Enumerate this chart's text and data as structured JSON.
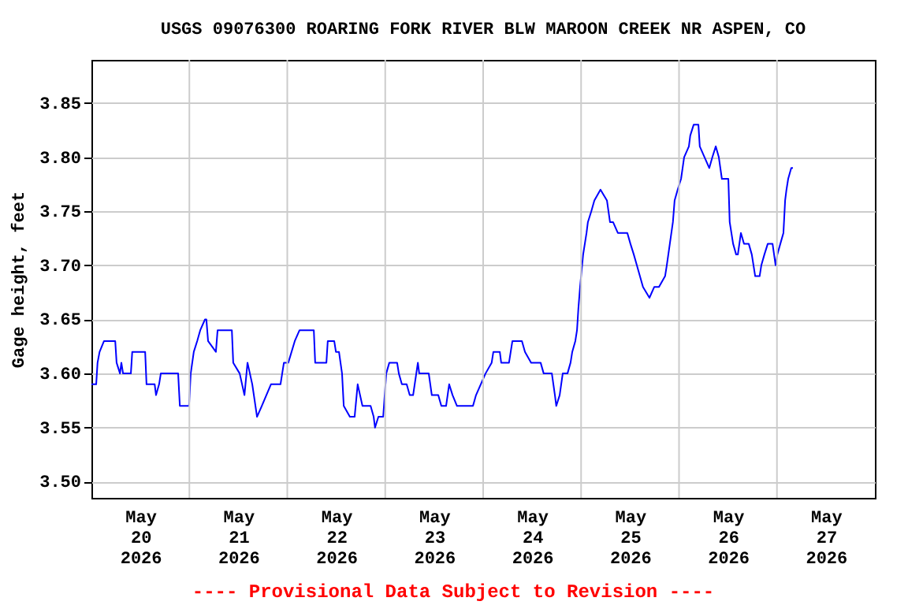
{
  "chart_data": {
    "type": "line",
    "title": "USGS 09076300 ROARING FORK RIVER BLW MAROON CREEK NR ASPEN, CO",
    "ylabel": "Gage height, feet",
    "annotations": [
      "---- Provisional Data Subject to Revision ----"
    ],
    "grid": true,
    "legend": false,
    "marker": "none",
    "line_style": "solid",
    "xlim": [
      "2026-05-20T00:00",
      "2026-05-28T00:00"
    ],
    "xticks": [
      {
        "value": "2026-05-20T12:00",
        "label": "May 20 2026"
      },
      {
        "value": "2026-05-21T00:00",
        "label": null
      },
      {
        "value": "2026-05-21T12:00",
        "label": "May 21 2026"
      },
      {
        "value": "2026-05-22T00:00",
        "label": null
      },
      {
        "value": "2026-05-22T12:00",
        "label": "May 22 2026"
      },
      {
        "value": "2026-05-23T00:00",
        "label": null
      },
      {
        "value": "2026-05-23T12:00",
        "label": "May 23 2026"
      },
      {
        "value": "2026-05-24T00:00",
        "label": null
      },
      {
        "value": "2026-05-24T12:00",
        "label": "May 24 2026"
      },
      {
        "value": "2026-05-25T00:00",
        "label": null
      },
      {
        "value": "2026-05-25T12:00",
        "label": "May 25 2026"
      },
      {
        "value": "2026-05-26T00:00",
        "label": null
      },
      {
        "value": "2026-05-26T12:00",
        "label": "May 26 2026"
      },
      {
        "value": "2026-05-27T00:00",
        "label": null
      },
      {
        "value": "2026-05-27T12:00",
        "label": "May 27 2026"
      }
    ],
    "ylim": [
      3.485,
      3.89
    ],
    "yticks": [
      {
        "value": 3.5,
        "label": "3.50"
      },
      {
        "value": 3.55,
        "label": "3.55"
      },
      {
        "value": 3.6,
        "label": "3.60"
      },
      {
        "value": 3.65,
        "label": "3.65"
      },
      {
        "value": 3.7,
        "label": "3.70"
      },
      {
        "value": 3.75,
        "label": "3.75"
      },
      {
        "value": 3.8,
        "label": "3.80"
      },
      {
        "value": 3.85,
        "label": "3.85"
      }
    ],
    "x": [
      "2026-05-20T00:00",
      "2026-05-20T01:10",
      "2026-05-20T01:30",
      "2026-05-20T02:00",
      "2026-05-20T03:05",
      "2026-05-20T05:50",
      "2026-05-20T06:10",
      "2026-05-20T07:00",
      "2026-05-20T07:20",
      "2026-05-20T07:45",
      "2026-05-20T09:40",
      "2026-05-20T10:00",
      "2026-05-20T13:10",
      "2026-05-20T13:30",
      "2026-05-20T15:30",
      "2026-05-20T15:50",
      "2026-05-20T16:35",
      "2026-05-20T17:00",
      "2026-05-20T21:15",
      "2026-05-20T21:40",
      "2026-05-20T23:55",
      "2026-05-21T00:20",
      "2026-05-21T01:05",
      "2026-05-21T01:55",
      "2026-05-21T02:40",
      "2026-05-21T03:50",
      "2026-05-21T04:10",
      "2026-05-21T04:35",
      "2026-05-21T06:30",
      "2026-05-21T06:55",
      "2026-05-21T10:25",
      "2026-05-21T10:45",
      "2026-05-21T12:20",
      "2026-05-21T13:30",
      "2026-05-21T14:15",
      "2026-05-21T15:25",
      "2026-05-21T16:35",
      "2026-05-21T17:45",
      "2026-05-21T20:00",
      "2026-05-21T22:20",
      "2026-05-21T23:10",
      "2026-05-22T00:15",
      "2026-05-22T01:50",
      "2026-05-22T03:00",
      "2026-05-22T06:30",
      "2026-05-22T06:50",
      "2026-05-22T09:35",
      "2026-05-22T09:55",
      "2026-05-22T11:30",
      "2026-05-22T11:55",
      "2026-05-22T12:40",
      "2026-05-22T13:25",
      "2026-05-22T13:50",
      "2026-05-22T15:20",
      "2026-05-22T16:30",
      "2026-05-22T17:15",
      "2026-05-22T18:25",
      "2026-05-22T20:25",
      "2026-05-22T21:10",
      "2026-05-22T21:30",
      "2026-05-22T22:20",
      "2026-05-22T23:30",
      "2026-05-23T00:15",
      "2026-05-23T01:00",
      "2026-05-23T02:55",
      "2026-05-23T03:20",
      "2026-05-23T04:05",
      "2026-05-23T05:15",
      "2026-05-23T06:00",
      "2026-05-23T06:50",
      "2026-05-23T08:00",
      "2026-05-23T08:20",
      "2026-05-23T10:40",
      "2026-05-23T11:25",
      "2026-05-23T13:00",
      "2026-05-23T13:45",
      "2026-05-23T14:55",
      "2026-05-23T15:40",
      "2026-05-23T16:30",
      "2026-05-23T17:35",
      "2026-05-23T21:30",
      "2026-05-23T22:15",
      "2026-05-23T23:25",
      "2026-05-24T00:35",
      "2026-05-24T02:05",
      "2026-05-24T02:30",
      "2026-05-24T04:05",
      "2026-05-24T04:25",
      "2026-05-24T06:20",
      "2026-05-24T07:10",
      "2026-05-24T09:30",
      "2026-05-24T10:15",
      "2026-05-24T11:45",
      "2026-05-24T14:05",
      "2026-05-24T14:50",
      "2026-05-24T16:50",
      "2026-05-24T17:35",
      "2026-05-24T17:55",
      "2026-05-24T18:45",
      "2026-05-24T19:30",
      "2026-05-24T20:40",
      "2026-05-24T21:25",
      "2026-05-24T21:50",
      "2026-05-24T22:35",
      "2026-05-24T23:00",
      "2026-05-24T23:20",
      "2026-05-24T23:45",
      "2026-05-25T00:30",
      "2026-05-25T01:20",
      "2026-05-25T01:40",
      "2026-05-25T02:30",
      "2026-05-25T03:15",
      "2026-05-25T04:45",
      "2026-05-25T06:20",
      "2026-05-25T07:05",
      "2026-05-25T07:50",
      "2026-05-25T09:00",
      "2026-05-25T11:20",
      "2026-05-25T12:05",
      "2026-05-25T12:55",
      "2026-05-25T13:40",
      "2026-05-25T14:25",
      "2026-05-25T15:10",
      "2026-05-25T16:45",
      "2026-05-25T17:55",
      "2026-05-25T19:05",
      "2026-05-25T20:35",
      "2026-05-25T21:00",
      "2026-05-25T21:45",
      "2026-05-25T22:30",
      "2026-05-25T22:55",
      "2026-05-25T23:40",
      "2026-05-26T00:30",
      "2026-05-26T01:15",
      "2026-05-26T02:25",
      "2026-05-26T02:45",
      "2026-05-26T03:35",
      "2026-05-26T04:45",
      "2026-05-26T05:05",
      "2026-05-26T06:15",
      "2026-05-26T07:25",
      "2026-05-26T08:10",
      "2026-05-26T09:00",
      "2026-05-26T09:45",
      "2026-05-26T10:30",
      "2026-05-26T12:05",
      "2026-05-26T12:25",
      "2026-05-26T13:15",
      "2026-05-26T14:00",
      "2026-05-26T14:25",
      "2026-05-26T15:10",
      "2026-05-26T15:55",
      "2026-05-26T17:05",
      "2026-05-26T17:50",
      "2026-05-26T18:40",
      "2026-05-26T19:45",
      "2026-05-26T20:10",
      "2026-05-26T20:55",
      "2026-05-26T21:45",
      "2026-05-26T22:55",
      "2026-05-26T23:40",
      "2026-05-27T00:05",
      "2026-05-27T00:50",
      "2026-05-27T01:35",
      "2026-05-27T02:00",
      "2026-05-27T02:20",
      "2026-05-27T02:45",
      "2026-05-27T03:30",
      "2026-05-27T03:55"
    ],
    "series": [
      {
        "color": "#0000ff",
        "values": [
          3.59,
          3.59,
          3.61,
          3.62,
          3.63,
          3.63,
          3.61,
          3.6,
          3.61,
          3.6,
          3.6,
          3.62,
          3.62,
          3.59,
          3.59,
          3.58,
          3.59,
          3.6,
          3.6,
          3.57,
          3.57,
          3.6,
          3.62,
          3.63,
          3.64,
          3.65,
          3.65,
          3.63,
          3.62,
          3.64,
          3.64,
          3.61,
          3.6,
          3.58,
          3.61,
          3.59,
          3.56,
          3.57,
          3.59,
          3.59,
          3.61,
          3.61,
          3.63,
          3.64,
          3.64,
          3.61,
          3.61,
          3.63,
          3.63,
          3.62,
          3.62,
          3.6,
          3.57,
          3.56,
          3.56,
          3.59,
          3.57,
          3.57,
          3.56,
          3.55,
          3.56,
          3.56,
          3.6,
          3.61,
          3.61,
          3.6,
          3.59,
          3.59,
          3.58,
          3.58,
          3.61,
          3.6,
          3.6,
          3.58,
          3.58,
          3.57,
          3.57,
          3.59,
          3.58,
          3.57,
          3.57,
          3.58,
          3.59,
          3.6,
          3.61,
          3.62,
          3.62,
          3.61,
          3.61,
          3.63,
          3.63,
          3.62,
          3.61,
          3.61,
          3.6,
          3.6,
          3.58,
          3.57,
          3.58,
          3.6,
          3.6,
          3.61,
          3.62,
          3.63,
          3.64,
          3.66,
          3.68,
          3.71,
          3.73,
          3.74,
          3.75,
          3.76,
          3.77,
          3.76,
          3.74,
          3.74,
          3.73,
          3.73,
          3.72,
          3.71,
          3.7,
          3.69,
          3.68,
          3.67,
          3.68,
          3.68,
          3.69,
          3.7,
          3.72,
          3.74,
          3.76,
          3.77,
          3.78,
          3.8,
          3.81,
          3.82,
          3.83,
          3.83,
          3.81,
          3.8,
          3.79,
          3.8,
          3.81,
          3.8,
          3.78,
          3.78,
          3.74,
          3.72,
          3.71,
          3.71,
          3.73,
          3.72,
          3.72,
          3.71,
          3.69,
          3.69,
          3.7,
          3.71,
          3.72,
          3.72,
          3.7,
          3.71,
          3.72,
          3.73,
          3.76,
          3.77,
          3.78,
          3.79,
          3.79
        ]
      }
    ]
  }
}
